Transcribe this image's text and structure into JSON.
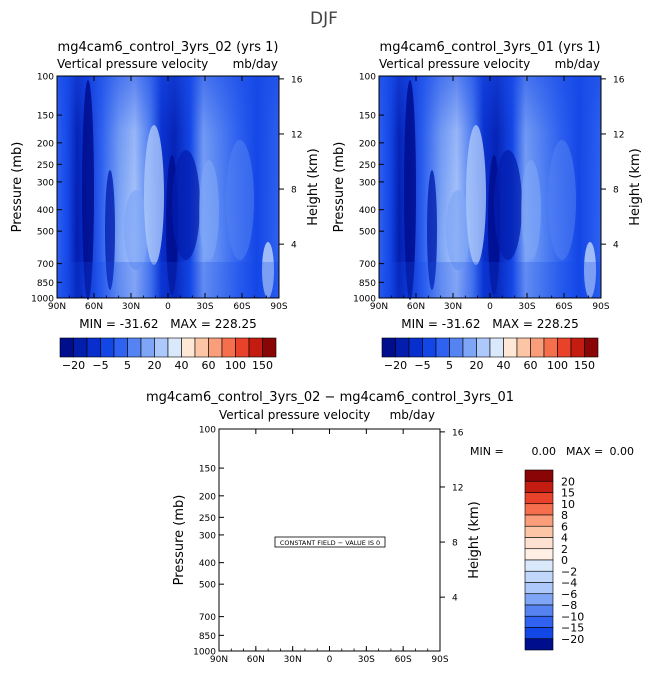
{
  "page": {
    "season": "DJF",
    "colors": {
      "background": "#ffffff",
      "ink": "#000000"
    }
  },
  "icons": [
    "constant-field-label-box"
  ],
  "chart_data": [
    {
      "type": "heatmap",
      "id": "top-left",
      "title": "mg4cam6_control_3yrs_02 (yrs 1)",
      "variable": "Vertical pressure velocity",
      "units": "mb/day",
      "ylabel_left": "Pressure (mb)",
      "ylabel_right": "Height (km)",
      "x_ticks": [
        "90N",
        "60N",
        "30N",
        "0",
        "30S",
        "60S",
        "90S"
      ],
      "x_range": [
        90,
        -90
      ],
      "p_ticks": [
        100,
        150,
        200,
        250,
        300,
        400,
        500,
        700,
        850,
        1000
      ],
      "p_range": [
        100,
        1000
      ],
      "z_ticks": [
        4,
        8,
        12,
        16
      ],
      "stats": {
        "min_label": "MIN = -31.62",
        "max_label": "MAX = 228.25"
      },
      "grid": false,
      "contour_fill": "zonal-mean omega bands: strong descent (dark blue) near 75N, 35N and 5N; weak values (light blue) near 25N, 10S and 45S"
    },
    {
      "type": "heatmap",
      "id": "top-right",
      "title": "mg4cam6_control_3yrs_01 (yrs 1)",
      "variable": "Vertical pressure velocity",
      "units": "mb/day",
      "ylabel_left": "Pressure (mb)",
      "ylabel_right": "Height (km)",
      "x_ticks": [
        "90N",
        "60N",
        "30N",
        "0",
        "30S",
        "60S",
        "90S"
      ],
      "x_range": [
        90,
        -90
      ],
      "p_ticks": [
        100,
        150,
        200,
        250,
        300,
        400,
        500,
        700,
        850,
        1000
      ],
      "p_range": [
        100,
        1000
      ],
      "z_ticks": [
        4,
        8,
        12,
        16
      ],
      "stats": {
        "min_label": "MIN = -31.62",
        "max_label": "MAX = 228.25"
      },
      "grid": false
    },
    {
      "type": "heatmap",
      "id": "difference",
      "title": "mg4cam6_control_3yrs_02 − mg4cam6_control_3yrs_01",
      "variable": "Vertical pressure velocity",
      "units": "mb/day",
      "ylabel_left": "Pressure (mb)",
      "ylabel_right": "Height (km)",
      "x_ticks": [
        "90N",
        "60N",
        "30N",
        "0",
        "30S",
        "60S",
        "90S"
      ],
      "x_range": [
        90,
        -90
      ],
      "p_ticks": [
        100,
        150,
        200,
        250,
        300,
        400,
        500,
        700,
        850,
        1000
      ],
      "p_range": [
        100,
        1000
      ],
      "z_ticks": [
        4,
        8,
        12,
        16
      ],
      "constant_field_label": "CONSTANT FIELD − VALUE IS 0",
      "stats": {
        "min_label": "MIN =",
        "min_value": "0.00",
        "max_label": "MAX =",
        "max_value": "0.00"
      },
      "grid": false
    }
  ],
  "colorbars": {
    "main": {
      "orientation": "horizontal",
      "labels": [
        "−20",
        "−5",
        "5",
        "20",
        "40",
        "60",
        "100",
        "150"
      ],
      "colors": [
        "#000d8c",
        "#031ead",
        "#082fce",
        "#1346e6",
        "#2f62f0",
        "#5584f2",
        "#7fa6f6",
        "#adc8fa",
        "#dae8fc",
        "#ffe7d6",
        "#fcc6a6",
        "#f99d7a",
        "#f66f4d",
        "#e8432a",
        "#c51c12",
        "#8a0505"
      ]
    },
    "difference": {
      "orientation": "vertical",
      "labels": [
        "20",
        "15",
        "10",
        "8",
        "6",
        "4",
        "2",
        "0",
        "−2",
        "−4",
        "−6",
        "−8",
        "−10",
        "−15",
        "−20"
      ],
      "colors": [
        "#8a0505",
        "#c51c12",
        "#e8432a",
        "#f66f4d",
        "#f99d7a",
        "#fcc6a6",
        "#fde0cf",
        "#ffefe5",
        "#dae8fc",
        "#c1d6fb",
        "#adc8fa",
        "#7fa6f6",
        "#5584f2",
        "#2f62f0",
        "#1346e6",
        "#000d8c"
      ]
    }
  }
}
